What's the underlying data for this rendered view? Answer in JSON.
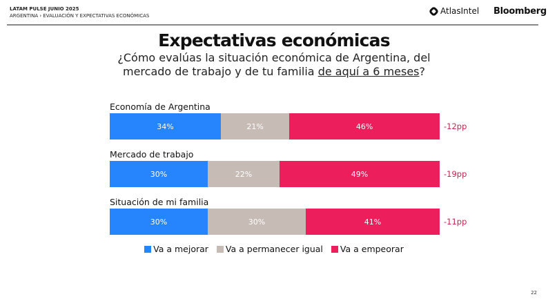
{
  "header": {
    "line1": "LATAM PULSE JUNIO 2025",
    "line2": "ARGENTINA › EVALUACIÓN Y EXPECTATIVAS ECONÓMICAS",
    "brand1": "AtlasIntel",
    "brand2": "Bloomberg"
  },
  "title": "Expectativas económicas",
  "subtitle": {
    "line1": "¿Cómo evalúas la situación económica de Argentina, del",
    "line2_pre": "mercado de trabajo y de tu familia ",
    "line2_u": "de aquí a 6 meses",
    "line2_post": "?"
  },
  "page_number": "22",
  "chart_data": {
    "type": "bar",
    "stacked": true,
    "orientation": "horizontal",
    "categories": [
      "Economía de Argentina",
      "Mercado de trabajo",
      "Situación de mi familia"
    ],
    "series": [
      {
        "name": "Va a mejorar",
        "color": "#2684fc",
        "values": [
          34,
          30,
          30
        ],
        "labels": [
          "34%",
          "30%",
          "30%"
        ]
      },
      {
        "name": "Va a permanecer igual",
        "color": "#c6bbb5",
        "values": [
          21,
          22,
          30
        ],
        "labels": [
          "21%",
          "22%",
          "30%"
        ]
      },
      {
        "name": "Va a empeorar",
        "color": "#ec1e5c",
        "values": [
          46,
          49,
          41
        ],
        "labels": [
          "46%",
          "49%",
          "41%"
        ]
      }
    ],
    "net_labels": [
      "-12pp",
      "-19pp",
      "-11pp"
    ],
    "legend_position": "bottom"
  }
}
